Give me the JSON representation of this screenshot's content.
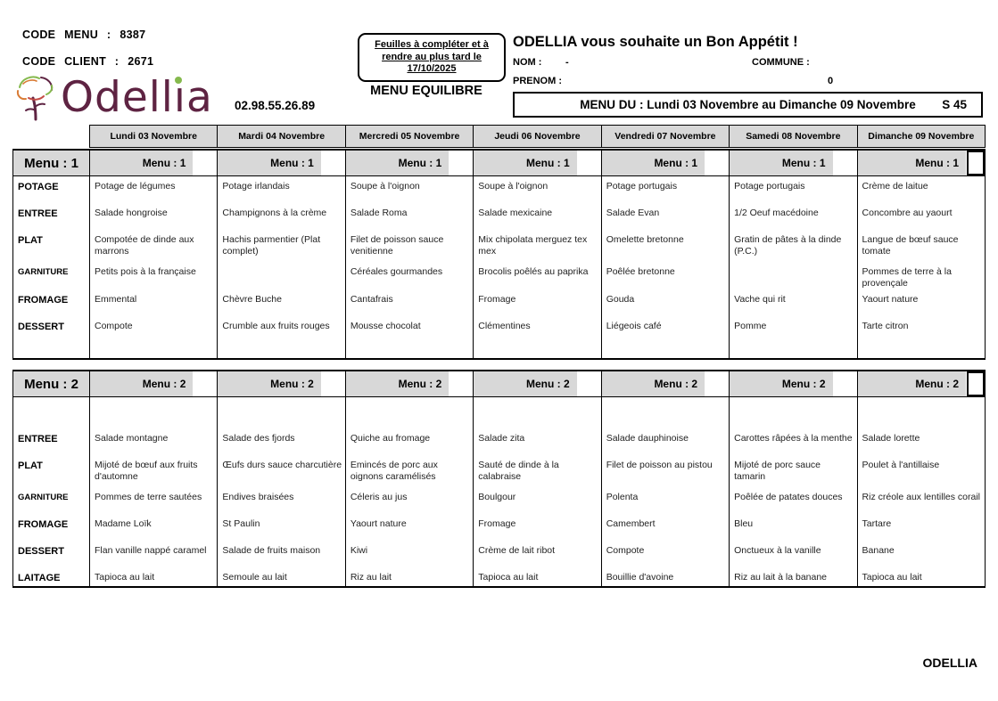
{
  "header": {
    "code_menu_label": "CODE  MENU  :",
    "code_menu_value": "8387",
    "code_client_label": "CODE  CLIENT  :",
    "code_client_value": "2671",
    "brand": "Odellia",
    "phone": "02.98.55.26.89",
    "notice_line1": "Feuilles à compléter et à",
    "notice_line2": "rendre au plus tard le",
    "notice_line3": "17/10/2025",
    "menu_type": "MENU EQUILIBRE",
    "greeting": "ODELLIA vous souhaite un Bon Appétit !",
    "nom_label": "NOM :",
    "nom_value": "-",
    "commune_label": "COMMUNE :",
    "prenom_label": "PRENOM :",
    "commune_value": "0",
    "week_banner": "MENU DU : Lundi 03 Novembre au Dimanche 09 Novembre",
    "week_code": "S 45"
  },
  "days": [
    "Lundi 03 Novembre",
    "Mardi 04 Novembre",
    "Mercredi 05 Novembre",
    "Jeudi 06 Novembre",
    "Vendredi 07 Novembre",
    "Samedi 08 Novembre",
    "Dimanche 09 Novembre"
  ],
  "menu1": {
    "title": "Menu : 1",
    "rows": [
      {
        "label": "POTAGE",
        "cells": [
          "Potage de légumes",
          "Potage irlandais",
          "Soupe à l'oignon",
          "Soupe à l'oignon",
          "Potage portugais",
          "Potage portugais",
          "Crème de laitue"
        ]
      },
      {
        "label": "ENTREE",
        "cells": [
          "Salade hongroise",
          "Champignons à la crème",
          "Salade Roma",
          "Salade mexicaine",
          "Salade Evan",
          "1/2 Oeuf macédoine",
          "Concombre au yaourt"
        ]
      },
      {
        "label": "PLAT",
        "cells": [
          "Compotée de dinde aux marrons",
          "Hachis parmentier (Plat complet)",
          "Filet de poisson sauce venitienne",
          "Mix chipolata merguez tex mex",
          "Omelette bretonne",
          "Gratin de pâtes à la dinde (P.C.)",
          "Langue de bœuf sauce tomate"
        ]
      },
      {
        "label": "GARNITURE",
        "cells": [
          "Petits pois à la française",
          "",
          "Céréales gourmandes",
          "Brocolis poêlés au paprika",
          "Poêlée bretonne",
          "",
          "Pommes de terre à la provençale"
        ]
      },
      {
        "label": "FROMAGE",
        "cells": [
          "Emmental",
          "Chèvre Buche",
          "Cantafrais",
          "Fromage",
          "Gouda",
          "Vache qui rit",
          "Yaourt nature"
        ]
      },
      {
        "label": "DESSERT",
        "cells": [
          "Compote",
          "Crumble aux fruits rouges",
          "Mousse chocolat",
          "Clémentines",
          "Liégeois café",
          "Pomme",
          "Tarte citron"
        ]
      }
    ]
  },
  "menu2": {
    "title": "Menu : 2",
    "rows": [
      {
        "label": "ENTREE",
        "cells": [
          "Salade montagne",
          "Salade des fjords",
          "Quiche au fromage",
          "Salade zita",
          "Salade dauphinoise",
          "Carottes râpées à la menthe",
          "Salade lorette"
        ]
      },
      {
        "label": "PLAT",
        "cells": [
          "Mijoté de bœuf aux fruits d'automne",
          "Œufs durs sauce charcutière",
          "Emincés de porc aux oignons caramélisés",
          "Sauté de dinde à la calabraise",
          "Filet de poisson au pistou",
          "Mijoté de porc sauce tamarin",
          "Poulet à l'antillaise"
        ]
      },
      {
        "label": "GARNITURE",
        "cells": [
          "Pommes de terre sautées",
          "Endives braisées",
          "Céleris au jus",
          "Boulgour",
          "Polenta",
          "Poêlée de patates douces",
          "Riz créole aux lentilles corail"
        ]
      },
      {
        "label": "FROMAGE",
        "cells": [
          "Madame Loïk",
          "St Paulin",
          "Yaourt nature",
          "Fromage",
          "Camembert",
          "Bleu",
          "Tartare"
        ]
      },
      {
        "label": "DESSERT",
        "cells": [
          "Flan vanille nappé caramel",
          "Salade de fruits maison",
          "Kiwi",
          "Crème de lait ribot",
          "Compote",
          "Onctueux à la vanille",
          "Banane"
        ]
      },
      {
        "label": "LAITAGE",
        "cells": [
          "Tapioca au lait",
          "Semoule au lait",
          "Riz au lait",
          "Tapioca au lait",
          "Bouillie d'avoine",
          "Riz au lait à la banane",
          "Tapioca au lait"
        ]
      }
    ]
  },
  "footer": {
    "brand": "ODELLIA"
  }
}
